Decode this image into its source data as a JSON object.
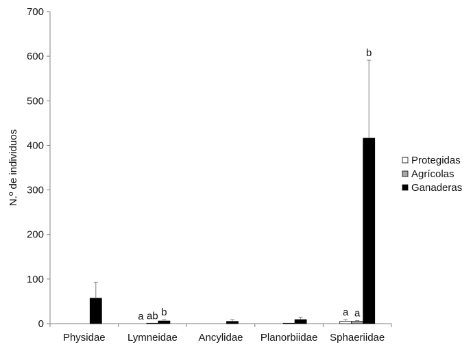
{
  "chart_data": {
    "type": "bar",
    "title": "",
    "xlabel": "",
    "ylabel": "N.º de individuos",
    "ylim": [
      0,
      700
    ],
    "yticks": [
      0,
      100,
      200,
      300,
      400,
      500,
      600,
      700
    ],
    "grid": false,
    "legend_position": "right",
    "categories": [
      "Physidae",
      "Lymneidae",
      "Ancylidae",
      "Planorbiidae",
      "Sphaeriidae"
    ],
    "series": [
      {
        "name": "Protegidas",
        "color": "#ffffff",
        "values": [
          0,
          0,
          0,
          0,
          5
        ],
        "errors": [
          0,
          0,
          0,
          0,
          4
        ],
        "labels": [
          "",
          "a",
          "",
          "",
          "a"
        ]
      },
      {
        "name": "Agrícolas",
        "color": "#a6a6a6",
        "values": [
          0,
          1,
          0,
          1,
          5
        ],
        "errors": [
          0,
          0,
          0,
          0,
          2
        ],
        "labels": [
          "",
          "ab",
          "",
          "",
          "a"
        ]
      },
      {
        "name": "Ganaderas",
        "color": "#000000",
        "values": [
          57,
          6,
          5,
          9,
          416
        ],
        "errors": [
          36,
          3,
          4,
          5,
          175
        ],
        "labels": [
          "",
          "b",
          "",
          "",
          "b"
        ]
      }
    ]
  }
}
